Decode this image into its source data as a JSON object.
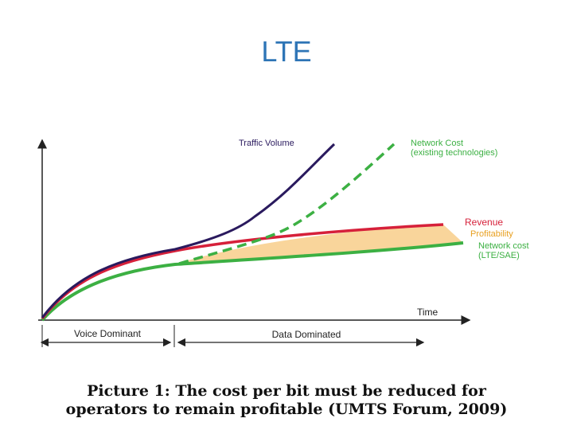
{
  "slide": {
    "title": "LTE"
  },
  "diagram": {
    "labels": {
      "traffic_volume": "Traffic Volume",
      "network_cost_existing_1": "Network Cost",
      "network_cost_existing_2": "(existing technologies)",
      "revenue": "Revenue",
      "profitability": "Profitability",
      "network_cost_lte_1": "Network cost",
      "network_cost_lte_2": "(LTE/SAE)",
      "time": "Time",
      "voice_dominant": "Voice Dominant",
      "data_dominated": "Data Dominated"
    },
    "colors": {
      "traffic_volume": "#2a1a5e",
      "network_cost_existing": "#3cb043",
      "revenue": "#d6203a",
      "network_cost_lte": "#3cb043",
      "profitability_fill": "#f9d59b",
      "label_red": "#d6203a",
      "label_orange": "#e8a020",
      "label_green": "#3cb043"
    }
  },
  "caption": {
    "line1": "Picture 1: The cost per bit must be reduced for",
    "line2": "operators to remain profitable (UMTS Forum, 2009)"
  }
}
